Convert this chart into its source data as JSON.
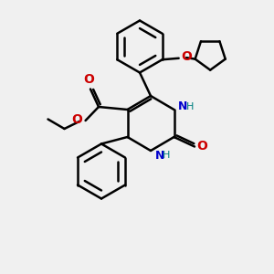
{
  "bg_color": "#f0f0f0",
  "bond_color": "#000000",
  "bond_width": 1.8,
  "N_color": "#0000cc",
  "O_color": "#cc0000",
  "NH_color": "#008080",
  "figsize": [
    3.0,
    3.0
  ],
  "dpi": 100,
  "xlim": [
    0,
    10
  ],
  "ylim": [
    0,
    10
  ]
}
